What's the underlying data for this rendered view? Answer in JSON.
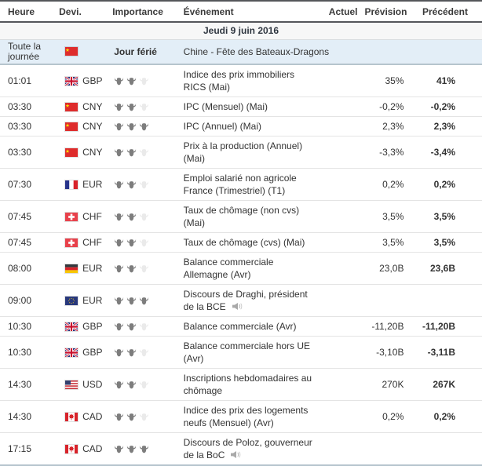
{
  "table": {
    "columns": [
      "Heure",
      "Devi.",
      "Importance",
      "Événement",
      "Actuel",
      "Prévision",
      "Précédent"
    ],
    "date_header": "Jeudi 9 juin 2016",
    "holiday": {
      "time": "Toute la journée",
      "flag": "china",
      "label": "Jour férié",
      "event": "Chine - Fête des Bateaux-Dragons"
    },
    "rows": [
      {
        "time": "01:01",
        "flag": "uk",
        "currency": "GBP",
        "importance": 2,
        "event": "Indice des prix immobiliers RICS (Mai)",
        "actual": "",
        "forecast": "35%",
        "previous": "41%",
        "speech": false
      },
      {
        "time": "03:30",
        "flag": "china",
        "currency": "CNY",
        "importance": 2,
        "event": "IPC (Mensuel) (Mai)",
        "actual": "",
        "forecast": "-0,2%",
        "previous": "-0,2%",
        "speech": false
      },
      {
        "time": "03:30",
        "flag": "china",
        "currency": "CNY",
        "importance": 3,
        "event": "IPC (Annuel) (Mai)",
        "actual": "",
        "forecast": "2,3%",
        "previous": "2,3%",
        "speech": false
      },
      {
        "time": "03:30",
        "flag": "china",
        "currency": "CNY",
        "importance": 2,
        "event": "Prix à la production (Annuel) (Mai)",
        "actual": "",
        "forecast": "-3,3%",
        "previous": "-3,4%",
        "speech": false
      },
      {
        "time": "07:30",
        "flag": "france",
        "currency": "EUR",
        "importance": 2,
        "event": "Emploi salarié non agricole France (Trimestriel) (T1)",
        "actual": "",
        "forecast": "0,2%",
        "previous": "0,2%",
        "speech": false
      },
      {
        "time": "07:45",
        "flag": "switzerland",
        "currency": "CHF",
        "importance": 2,
        "event": "Taux de chômage (non cvs) (Mai)",
        "actual": "",
        "forecast": "3,5%",
        "previous": "3,5%",
        "speech": false
      },
      {
        "time": "07:45",
        "flag": "switzerland",
        "currency": "CHF",
        "importance": 2,
        "event": "Taux de chômage (cvs) (Mai)",
        "actual": "",
        "forecast": "3,5%",
        "previous": "3,5%",
        "speech": false
      },
      {
        "time": "08:00",
        "flag": "germany",
        "currency": "EUR",
        "importance": 2,
        "event": "Balance commerciale Allemagne (Avr)",
        "actual": "",
        "forecast": "23,0B",
        "previous": "23,6B",
        "speech": false
      },
      {
        "time": "09:00",
        "flag": "eu",
        "currency": "EUR",
        "importance": 3,
        "event": "Discours de Draghi, président de la BCE",
        "actual": "",
        "forecast": "",
        "previous": "",
        "speech": true
      },
      {
        "time": "10:30",
        "flag": "uk",
        "currency": "GBP",
        "importance": 2,
        "event": "Balance commerciale (Avr)",
        "actual": "",
        "forecast": "-11,20B",
        "previous": "-11,20B",
        "speech": false
      },
      {
        "time": "10:30",
        "flag": "uk",
        "currency": "GBP",
        "importance": 2,
        "event": "Balance commerciale hors UE (Avr)",
        "actual": "",
        "forecast": "-3,10B",
        "previous": "-3,11B",
        "speech": false
      },
      {
        "time": "14:30",
        "flag": "usa",
        "currency": "USD",
        "importance": 2,
        "event": "Inscriptions hebdomadaires au chômage",
        "actual": "",
        "forecast": "270K",
        "previous": "267K",
        "speech": false
      },
      {
        "time": "14:30",
        "flag": "canada",
        "currency": "CAD",
        "importance": 2,
        "event": "Indice des prix des logements neufs (Mensuel) (Avr)",
        "actual": "",
        "forecast": "0,2%",
        "previous": "0,2%",
        "speech": false
      },
      {
        "time": "17:15",
        "flag": "canada",
        "currency": "CAD",
        "importance": 3,
        "event": "Discours de Poloz, gouverneur de la BoC",
        "actual": "",
        "forecast": "",
        "previous": "",
        "speech": true
      }
    ],
    "importance_scale_max": 3
  },
  "icons": {
    "importance": "bull-icon",
    "speech": "speaker-icon",
    "flags": [
      "uk",
      "china",
      "france",
      "switzerland",
      "germany",
      "eu",
      "usa",
      "canada"
    ]
  },
  "colors": {
    "header_border": "#54565a",
    "date_row_bg": "#f7f7f7",
    "holiday_row_bg": "#e3eef7",
    "section_border": "#b6c4cd",
    "row_border": "#e4e4e4",
    "bull_active": "#7d7d7d",
    "bull_inactive": "#eaeaea",
    "text": "#333333"
  }
}
